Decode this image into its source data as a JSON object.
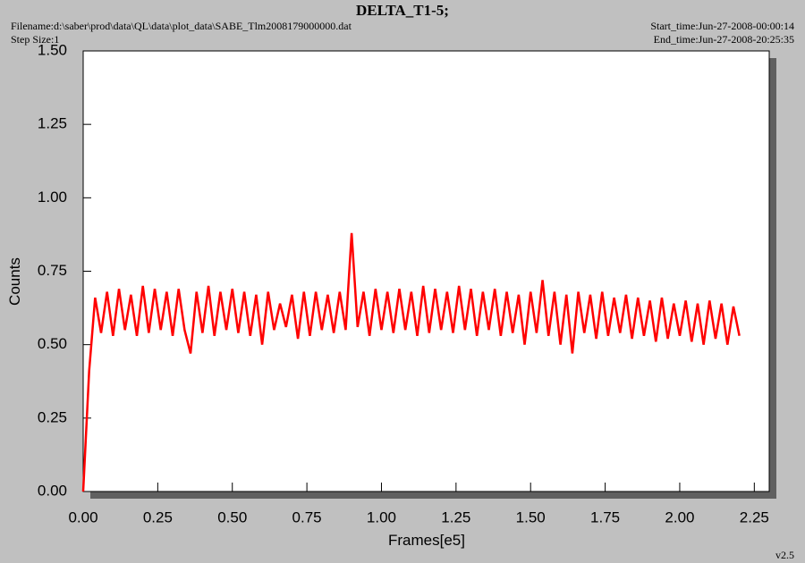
{
  "header": {
    "title": "DELTA_T1-5;",
    "filename": "Filename:d:\\saber\\prod\\data\\QL\\data\\plot_data\\SABE_Tlm2008179000000.dat",
    "step_size": "Step Size:1",
    "start_time": "Start_time:Jun-27-2008-00:00:14",
    "end_time": "End_time:Jun-27-2008-20:25:35",
    "version": "v2.5"
  },
  "chart_data": {
    "type": "line",
    "xlabel": "Frames[e5]",
    "ylabel": "Counts",
    "x": [
      0,
      0.02,
      0.04,
      0.06,
      0.08,
      0.1,
      0.12,
      0.14,
      0.16,
      0.18,
      0.2,
      0.22,
      0.24,
      0.26,
      0.28,
      0.3,
      0.32,
      0.34,
      0.36,
      0.38,
      0.4,
      0.42,
      0.44,
      0.46,
      0.48,
      0.5,
      0.52,
      0.54,
      0.56,
      0.58,
      0.6,
      0.62,
      0.64,
      0.66,
      0.68,
      0.7,
      0.72,
      0.74,
      0.76,
      0.78,
      0.8,
      0.82,
      0.84,
      0.86,
      0.88,
      0.9,
      0.92,
      0.94,
      0.96,
      0.98,
      1,
      1.02,
      1.04,
      1.06,
      1.08,
      1.1,
      1.12,
      1.14,
      1.16,
      1.18,
      1.2,
      1.22,
      1.24,
      1.26,
      1.28,
      1.3,
      1.32,
      1.34,
      1.36,
      1.38,
      1.4,
      1.42,
      1.44,
      1.46,
      1.48,
      1.5,
      1.52,
      1.54,
      1.56,
      1.58,
      1.6,
      1.62,
      1.64,
      1.66,
      1.68,
      1.7,
      1.72,
      1.74,
      1.76,
      1.78,
      1.8,
      1.82,
      1.84,
      1.86,
      1.88,
      1.9,
      1.92,
      1.94,
      1.96,
      1.98,
      2,
      2.02,
      2.04,
      2.06,
      2.08,
      2.1,
      2.12,
      2.14,
      2.16,
      2.18,
      2.2
    ],
    "series": [
      {
        "color": "#ff0000",
        "values": [
          0,
          0.41,
          0.66,
          0.54,
          0.68,
          0.53,
          0.69,
          0.55,
          0.67,
          0.53,
          0.7,
          0.54,
          0.69,
          0.55,
          0.68,
          0.53,
          0.69,
          0.55,
          0.47,
          0.68,
          0.54,
          0.7,
          0.53,
          0.68,
          0.55,
          0.69,
          0.54,
          0.68,
          0.53,
          0.67,
          0.5,
          0.68,
          0.55,
          0.64,
          0.56,
          0.67,
          0.52,
          0.68,
          0.53,
          0.68,
          0.55,
          0.67,
          0.54,
          0.68,
          0.55,
          0.88,
          0.56,
          0.68,
          0.53,
          0.69,
          0.55,
          0.68,
          0.54,
          0.69,
          0.55,
          0.68,
          0.53,
          0.7,
          0.54,
          0.69,
          0.55,
          0.68,
          0.54,
          0.7,
          0.55,
          0.69,
          0.53,
          0.68,
          0.55,
          0.69,
          0.53,
          0.68,
          0.54,
          0.67,
          0.5,
          0.68,
          0.54,
          0.72,
          0.53,
          0.68,
          0.5,
          0.67,
          0.47,
          0.68,
          0.54,
          0.67,
          0.52,
          0.68,
          0.53,
          0.66,
          0.54,
          0.67,
          0.52,
          0.66,
          0.53,
          0.65,
          0.51,
          0.66,
          0.52,
          0.64,
          0.53,
          0.65,
          0.51,
          0.64,
          0.5,
          0.65,
          0.52,
          0.64,
          0.5,
          0.63,
          0.53
        ]
      }
    ],
    "xlim": [
      0,
      2.3
    ],
    "ylim": [
      0,
      1.5
    ],
    "xticks": [
      {
        "value": 0,
        "label": "0.00"
      },
      0.25,
      {
        "value": 0.5,
        "label": "0.50"
      },
      0.75,
      {
        "value": 1,
        "label": "1.00"
      },
      1.25,
      {
        "value": 1.5,
        "label": "1.50"
      },
      1.75,
      {
        "value": 2,
        "label": "2.00"
      },
      2.25
    ],
    "yticks": [
      {
        "value": 0,
        "label": "0.00"
      },
      0.25,
      {
        "value": 0.5,
        "label": "0.50"
      },
      0.75,
      {
        "value": 1,
        "label": "1.00"
      },
      1.25,
      {
        "value": 1.5,
        "label": "1.50"
      }
    ]
  }
}
